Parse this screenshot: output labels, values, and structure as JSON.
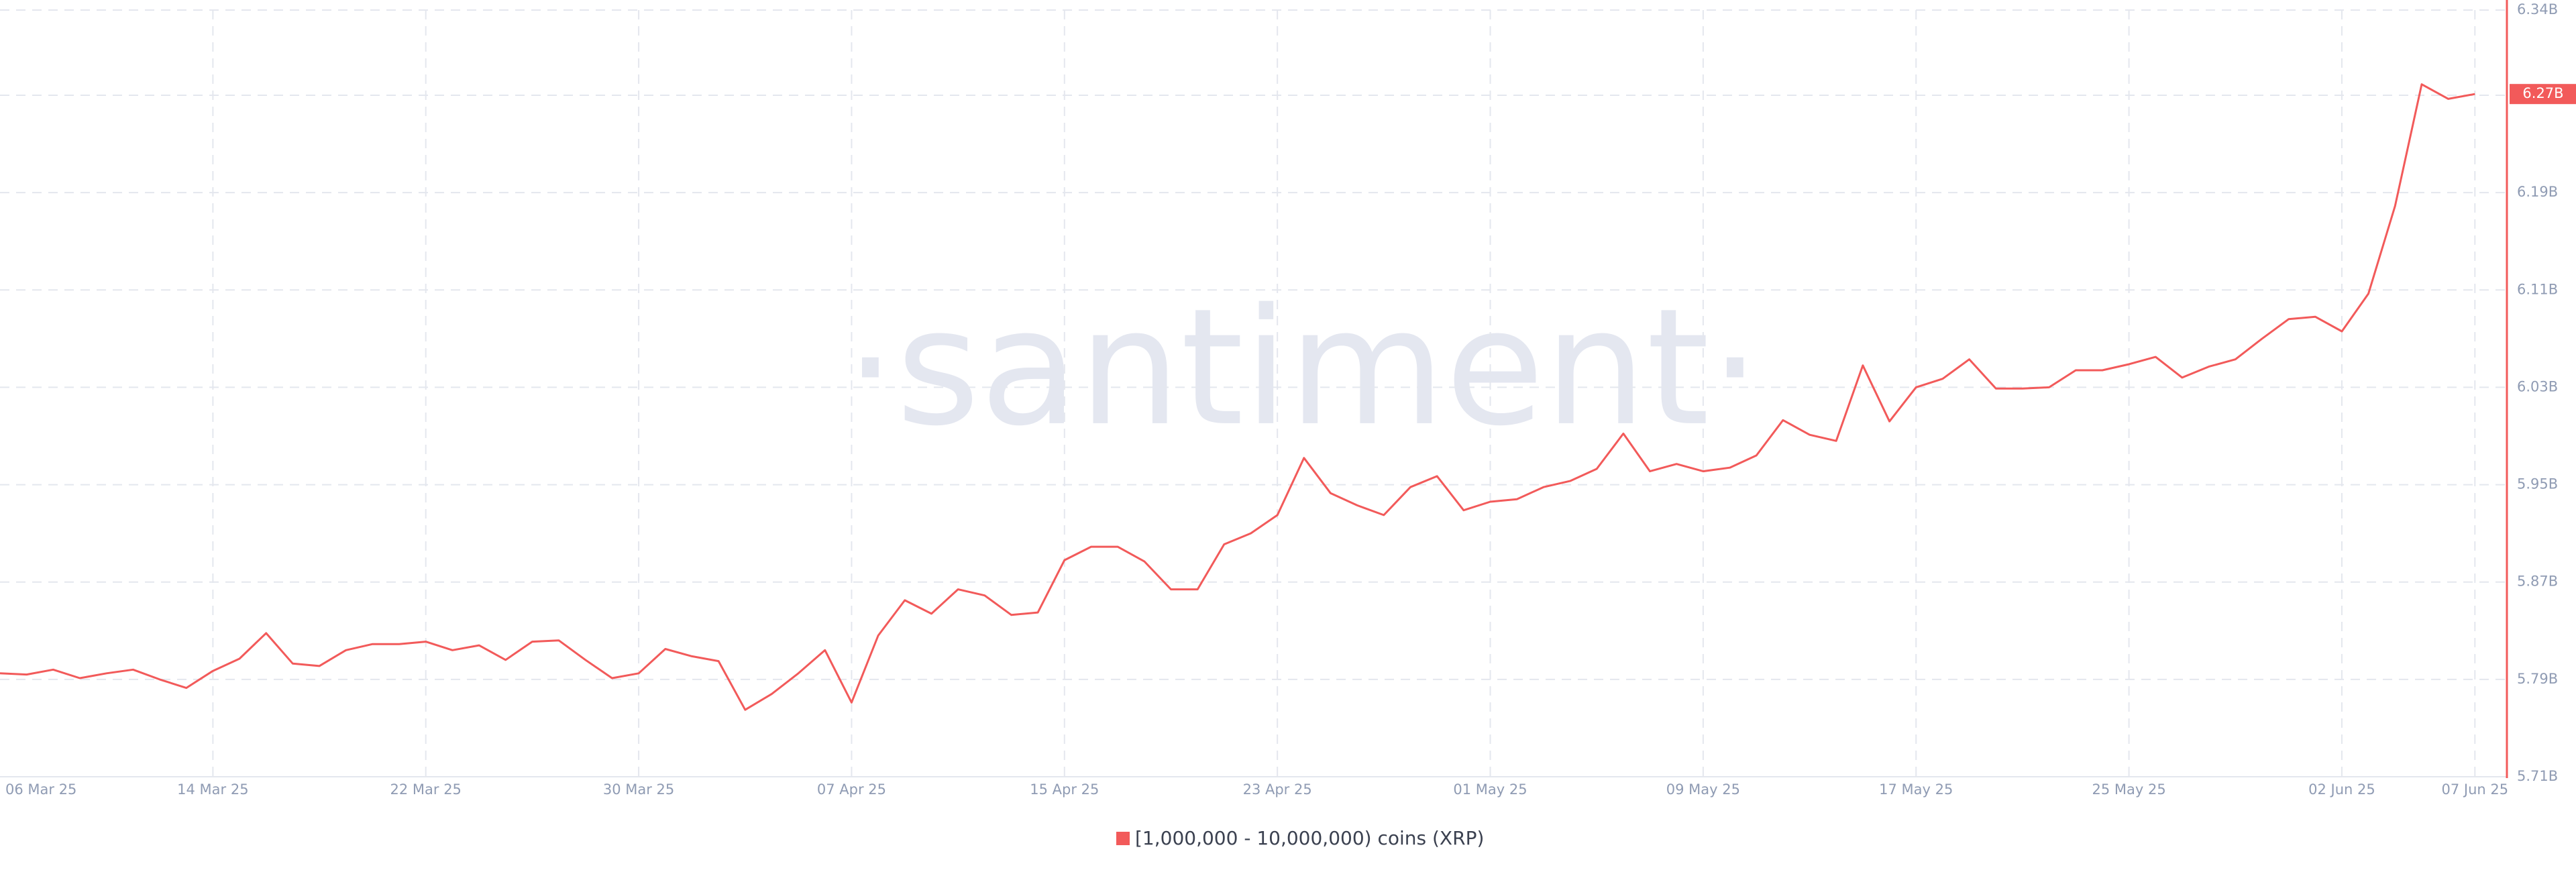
{
  "chart_data": {
    "type": "line",
    "watermark": "·santiment·",
    "categories": [
      "06 Mar 25",
      null,
      null,
      null,
      null,
      null,
      null,
      null,
      "14 Mar 25",
      null,
      null,
      null,
      null,
      null,
      null,
      null,
      "22 Mar 25",
      null,
      null,
      null,
      null,
      null,
      null,
      null,
      "30 Mar 25",
      null,
      null,
      null,
      null,
      null,
      null,
      null,
      "07 Apr 25",
      null,
      null,
      null,
      null,
      null,
      null,
      null,
      "15 Apr 25",
      null,
      null,
      null,
      null,
      null,
      null,
      null,
      "23 Apr 25",
      null,
      null,
      null,
      null,
      null,
      null,
      null,
      "01 May 25",
      null,
      null,
      null,
      null,
      null,
      null,
      null,
      "09 May 25",
      null,
      null,
      null,
      null,
      null,
      null,
      null,
      "17 May 25",
      null,
      null,
      null,
      null,
      null,
      null,
      null,
      "25 May 25",
      null,
      null,
      null,
      null,
      null,
      null,
      null,
      "02 Jun 25",
      null,
      null,
      null,
      null,
      "07 Jun 25"
    ],
    "series": [
      {
        "name": "[1,000,000 - 10,000,000) coins (XRP)",
        "color": "#f25a5a",
        "values": [
          5.795,
          5.794,
          5.798,
          5.791,
          5.795,
          5.798,
          5.79,
          5.783,
          5.797,
          5.807,
          5.828,
          5.803,
          5.801,
          5.814,
          5.819,
          5.819,
          5.821,
          5.814,
          5.818,
          5.806,
          5.821,
          5.822,
          5.806,
          5.791,
          5.795,
          5.815,
          5.809,
          5.805,
          5.765,
          5.778,
          5.795,
          5.814,
          5.771,
          5.826,
          5.855,
          5.844,
          5.864,
          5.859,
          5.843,
          5.845,
          5.888,
          5.899,
          5.899,
          5.887,
          5.864,
          5.864,
          5.901,
          5.91,
          5.925,
          5.972,
          5.943,
          5.933,
          5.925,
          5.948,
          5.957,
          5.929,
          5.936,
          5.938,
          5.948,
          5.953,
          5.963,
          5.992,
          5.961,
          5.967,
          5.961,
          5.964,
          5.974,
          6.003,
          5.991,
          5.986,
          6.048,
          6.002,
          6.03,
          6.037,
          6.053,
          6.029,
          6.029,
          6.03,
          6.044,
          6.044,
          6.049,
          6.055,
          6.038,
          6.047,
          6.053,
          6.07,
          6.086,
          6.088,
          6.076,
          6.107,
          6.179,
          6.279,
          6.267,
          6.271
        ],
        "value_labels": [
          null,
          null,
          null,
          null,
          null,
          null,
          null,
          null,
          null,
          null,
          null,
          null,
          null,
          null,
          null,
          null,
          null,
          null,
          null,
          null,
          null,
          null,
          null,
          null,
          null,
          null,
          null,
          null,
          null,
          null,
          null,
          null,
          null,
          null,
          null,
          null,
          null,
          null,
          null,
          null,
          null,
          null,
          null,
          null,
          null,
          null,
          null,
          null,
          null,
          null,
          null,
          null,
          null,
          null,
          null,
          null,
          null,
          null,
          null,
          null,
          null,
          null,
          null,
          null,
          null,
          null,
          null,
          null,
          null,
          null,
          null,
          null,
          null,
          null,
          null,
          null,
          null,
          null,
          null,
          null,
          null,
          null,
          null,
          null,
          null,
          null,
          null,
          null,
          null,
          null,
          null,
          null,
          null,
          "6.27B"
        ]
      }
    ],
    "ylim": [
      5.71,
      6.34
    ],
    "yticks": [
      {
        "value": 5.71,
        "label": "5.71B"
      },
      {
        "value": 5.79,
        "label": "5.79B"
      },
      {
        "value": 5.87,
        "label": "5.87B"
      },
      {
        "value": 5.95,
        "label": "5.95B"
      },
      {
        "value": 6.03,
        "label": "6.03B"
      },
      {
        "value": 6.11,
        "label": "6.11B"
      },
      {
        "value": 6.19,
        "label": "6.19B"
      },
      {
        "value": 6.27,
        "label": "6.27B"
      },
      {
        "value": 6.34,
        "label": "6.34B"
      }
    ],
    "grid": true
  }
}
